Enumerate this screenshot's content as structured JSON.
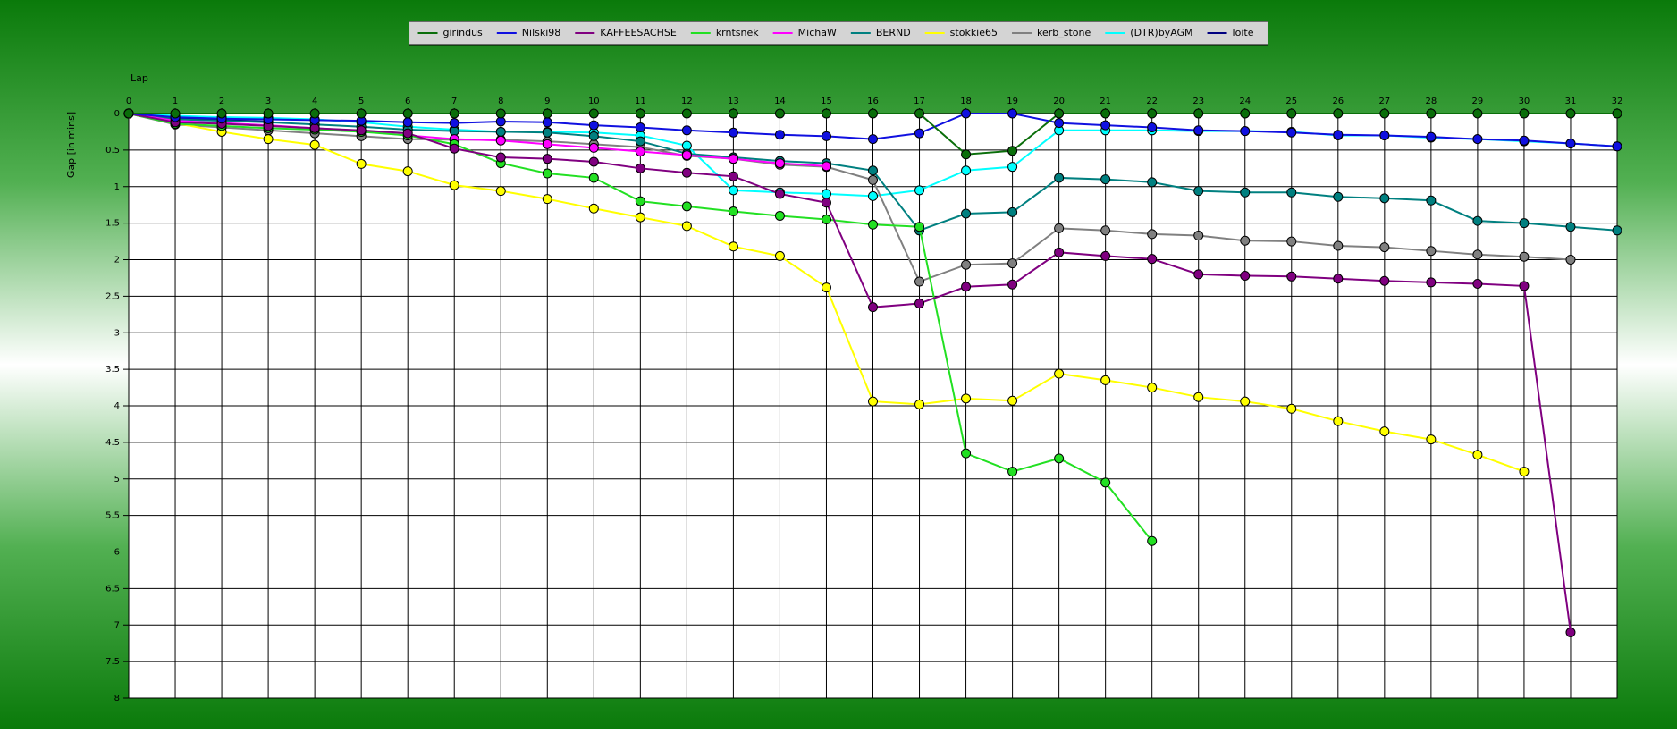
{
  "chart_data": {
    "type": "line",
    "x_label": "Lap",
    "y_label": "Gap [in mins]",
    "x": [
      0,
      1,
      2,
      3,
      4,
      5,
      6,
      7,
      8,
      9,
      10,
      11,
      12,
      13,
      14,
      15,
      16,
      17,
      18,
      19,
      20,
      21,
      22,
      23,
      24,
      25,
      26,
      27,
      28,
      29,
      30,
      31,
      32
    ],
    "xlim": [
      0,
      32
    ],
    "xticks": [
      0,
      1,
      2,
      3,
      4,
      5,
      6,
      7,
      8,
      9,
      10,
      11,
      12,
      13,
      14,
      15,
      16,
      17,
      18,
      19,
      20,
      21,
      22,
      23,
      24,
      25,
      26,
      27,
      28,
      29,
      30,
      31,
      32
    ],
    "ylim": [
      0,
      8
    ],
    "yticks": [
      0,
      0.5,
      1,
      1.5,
      2,
      2.5,
      3,
      3.5,
      4,
      4.5,
      5,
      5.5,
      6,
      6.5,
      7,
      7.5,
      8
    ],
    "y_inverted": true,
    "grid": true,
    "legend": "top",
    "series": [
      {
        "name": "girindus",
        "color": "#0a6e0a",
        "values": [
          0,
          0,
          0,
          0,
          0,
          0,
          0,
          0,
          0,
          0,
          0,
          0,
          0,
          0,
          0,
          0,
          0,
          0,
          0.56,
          0.51,
          0,
          0,
          0,
          0,
          0,
          0,
          0,
          0,
          0,
          0,
          0,
          0,
          0
        ]
      },
      {
        "name": "Nilski98",
        "color": "#1010e0",
        "values": [
          0,
          0.05,
          0.07,
          0.08,
          0.09,
          0.1,
          0.12,
          0.13,
          0.11,
          0.12,
          0.16,
          0.19,
          0.23,
          0.26,
          0.29,
          0.31,
          0.35,
          0.27,
          0,
          0,
          0.13,
          0.16,
          0.19,
          0.23,
          0.24,
          0.26,
          0.29,
          0.3,
          0.32,
          0.35,
          0.37,
          0.41,
          0.45
        ]
      },
      {
        "name": "KAFFEESACHSE",
        "color": "#800080",
        "values": [
          0,
          0.12,
          0.14,
          0.17,
          0.2,
          0.23,
          0.27,
          0.48,
          0.6,
          0.62,
          0.66,
          0.75,
          0.81,
          0.86,
          1.1,
          1.22,
          2.65,
          2.6,
          2.37,
          2.34,
          1.9,
          1.95,
          1.99,
          2.2,
          2.22,
          2.23,
          2.26,
          2.29,
          2.31,
          2.33,
          2.36,
          7.1,
          null
        ]
      },
      {
        "name": "krntsnek",
        "color": "#22e022",
        "values": [
          0,
          0.14,
          0.17,
          0.2,
          0.22,
          0.25,
          0.3,
          0.42,
          0.68,
          0.82,
          0.88,
          1.2,
          1.27,
          1.34,
          1.4,
          1.45,
          1.52,
          1.55,
          4.65,
          4.9,
          4.72,
          5.05,
          5.85,
          null,
          null,
          null,
          null,
          null,
          null,
          null,
          null,
          null,
          null
        ]
      },
      {
        "name": "MichaW",
        "color": "#ff00ff",
        "values": [
          0,
          0.1,
          0.13,
          0.16,
          0.2,
          0.24,
          0.3,
          0.35,
          0.37,
          0.42,
          0.47,
          0.52,
          0.57,
          0.62,
          0.68,
          0.72,
          null,
          null,
          null,
          null,
          null,
          null,
          null,
          null,
          null,
          null,
          null,
          null,
          null,
          null,
          null,
          null,
          null
        ]
      },
      {
        "name": "BERND",
        "color": "#008080",
        "values": [
          0,
          0.08,
          0.1,
          0.12,
          0.15,
          0.18,
          0.22,
          0.24,
          0.25,
          0.26,
          0.31,
          0.38,
          0.55,
          0.6,
          0.65,
          0.68,
          0.78,
          1.6,
          1.37,
          1.35,
          0.88,
          0.9,
          0.94,
          1.06,
          1.08,
          1.08,
          1.14,
          1.16,
          1.19,
          1.47,
          1.5,
          1.55,
          1.6
        ]
      },
      {
        "name": "stokkie65",
        "color": "#ffff00",
        "values": [
          0,
          0.13,
          0.25,
          0.35,
          0.43,
          0.69,
          0.79,
          0.98,
          1.06,
          1.17,
          1.3,
          1.42,
          1.54,
          1.82,
          1.95,
          2.38,
          3.94,
          3.98,
          3.9,
          3.93,
          3.56,
          3.65,
          3.75,
          3.88,
          3.94,
          4.04,
          4.21,
          4.35,
          4.46,
          4.67,
          4.9,
          null,
          null
        ]
      },
      {
        "name": "kerb_stone",
        "color": "#808080",
        "values": [
          0,
          0.15,
          0.19,
          0.23,
          0.27,
          0.31,
          0.35,
          0.36,
          0.36,
          0.38,
          0.42,
          0.46,
          0.58,
          0.62,
          0.7,
          0.73,
          0.91,
          2.3,
          2.07,
          2.05,
          1.57,
          1.6,
          1.65,
          1.67,
          1.74,
          1.75,
          1.81,
          1.83,
          1.88,
          1.93,
          1.96,
          2.0,
          null
        ]
      },
      {
        "name": "(DTR)byAGM",
        "color": "#00ffff",
        "values": [
          0,
          0.03,
          0.05,
          0.06,
          0.08,
          0.12,
          0.18,
          0.22,
          0.25,
          0.25,
          0.26,
          0.3,
          0.44,
          1.05,
          1.08,
          1.1,
          1.13,
          1.05,
          0.78,
          0.73,
          0.23,
          0.23,
          0.23,
          0.24,
          0.24,
          0.25,
          0.3,
          0.3,
          0.33,
          0.35,
          0.38,
          0.41,
          0.45
        ]
      },
      {
        "name": "loite",
        "color": "#000080",
        "values": [
          0,
          0.06,
          0.09,
          0.11,
          null,
          null,
          null,
          null,
          null,
          null,
          null,
          null,
          null,
          null,
          null,
          null,
          null,
          null,
          null,
          null,
          null,
          null,
          null,
          null,
          null,
          null,
          null,
          null,
          null,
          null,
          null,
          null,
          null
        ]
      }
    ]
  }
}
